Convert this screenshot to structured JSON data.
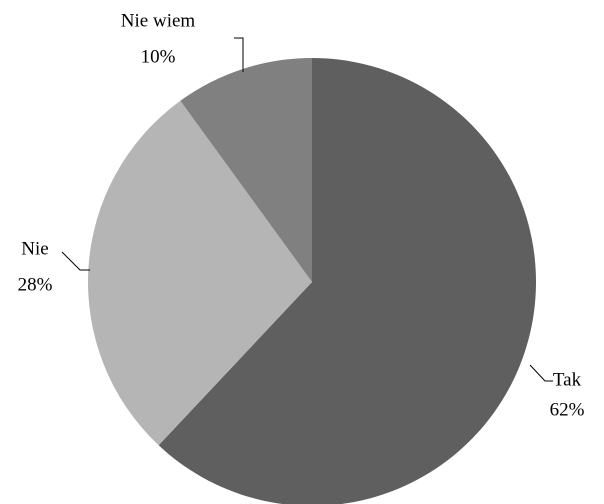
{
  "chart_data": {
    "type": "pie",
    "categories": [
      "Tak",
      "Nie",
      "Nie wiem"
    ],
    "values": [
      62,
      28,
      10
    ],
    "value_labels": [
      "62%",
      "28%",
      "10%"
    ],
    "colors": [
      "#5f5f5f",
      "#b5b5b5",
      "#808080"
    ]
  }
}
